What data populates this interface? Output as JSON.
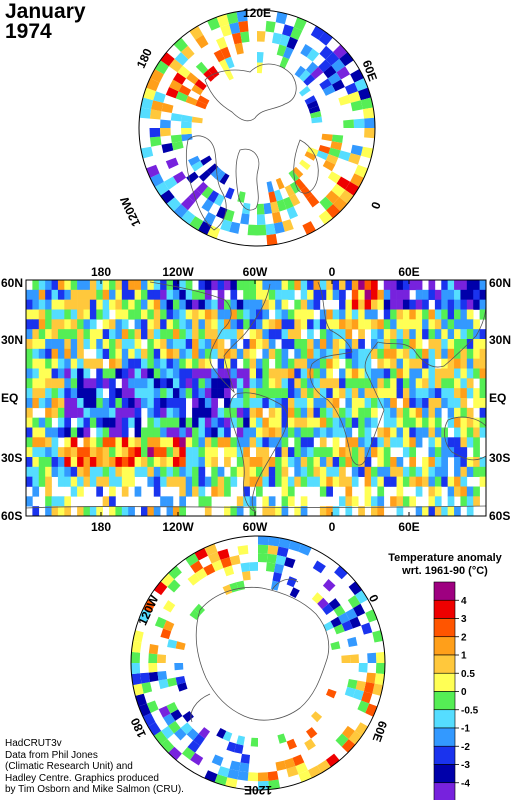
{
  "title": {
    "line1": "January",
    "line2": "1974"
  },
  "credit": {
    "line1": "HadCRUT3v",
    "line2": "Data from Phil Jones",
    "line3": "(Climatic Research Unit) and",
    "line4": "Hadley Centre.  Graphics produced",
    "line5": "by Tim Osborn and Mike Salmon (CRU)."
  },
  "legend": {
    "title_line1": "Temperature anomaly",
    "title_line2": "wrt. 1961-90  (°C)",
    "ticks": [
      "4",
      "3",
      "2",
      "1",
      "0.5",
      "0",
      "-0.5",
      "-1",
      "-2",
      "-3",
      "-4"
    ],
    "colors": [
      "#9e0080",
      "#ee0000",
      "#ff5500",
      "#ff9f1a",
      "#ffc83c",
      "#ffff55",
      "#55ee55",
      "#55ddff",
      "#3399ff",
      "#1a33ee",
      "#0000aa",
      "#7722dd"
    ]
  },
  "north_polar": {
    "labels": {
      "top": "120E",
      "left": "180",
      "right": "60E",
      "lower_left": "120W",
      "lower_right": "0"
    }
  },
  "main_map": {
    "top_lon": [
      "180",
      "120W",
      "60W",
      "0",
      "60E"
    ],
    "bottom_lon": [
      "180",
      "120W",
      "60W",
      "0",
      "60E"
    ],
    "left_lat": [
      "60N",
      "30N",
      "EQ",
      "30S",
      "60S"
    ],
    "right_lat": [
      "60N",
      "30N",
      "EQ",
      "30S",
      "60S"
    ]
  },
  "south_polar": {
    "labels": {
      "upper_left": "120W",
      "upper_right": "0",
      "lower_left": "180",
      "lower_right": "60E",
      "bottom": "120E"
    }
  }
}
